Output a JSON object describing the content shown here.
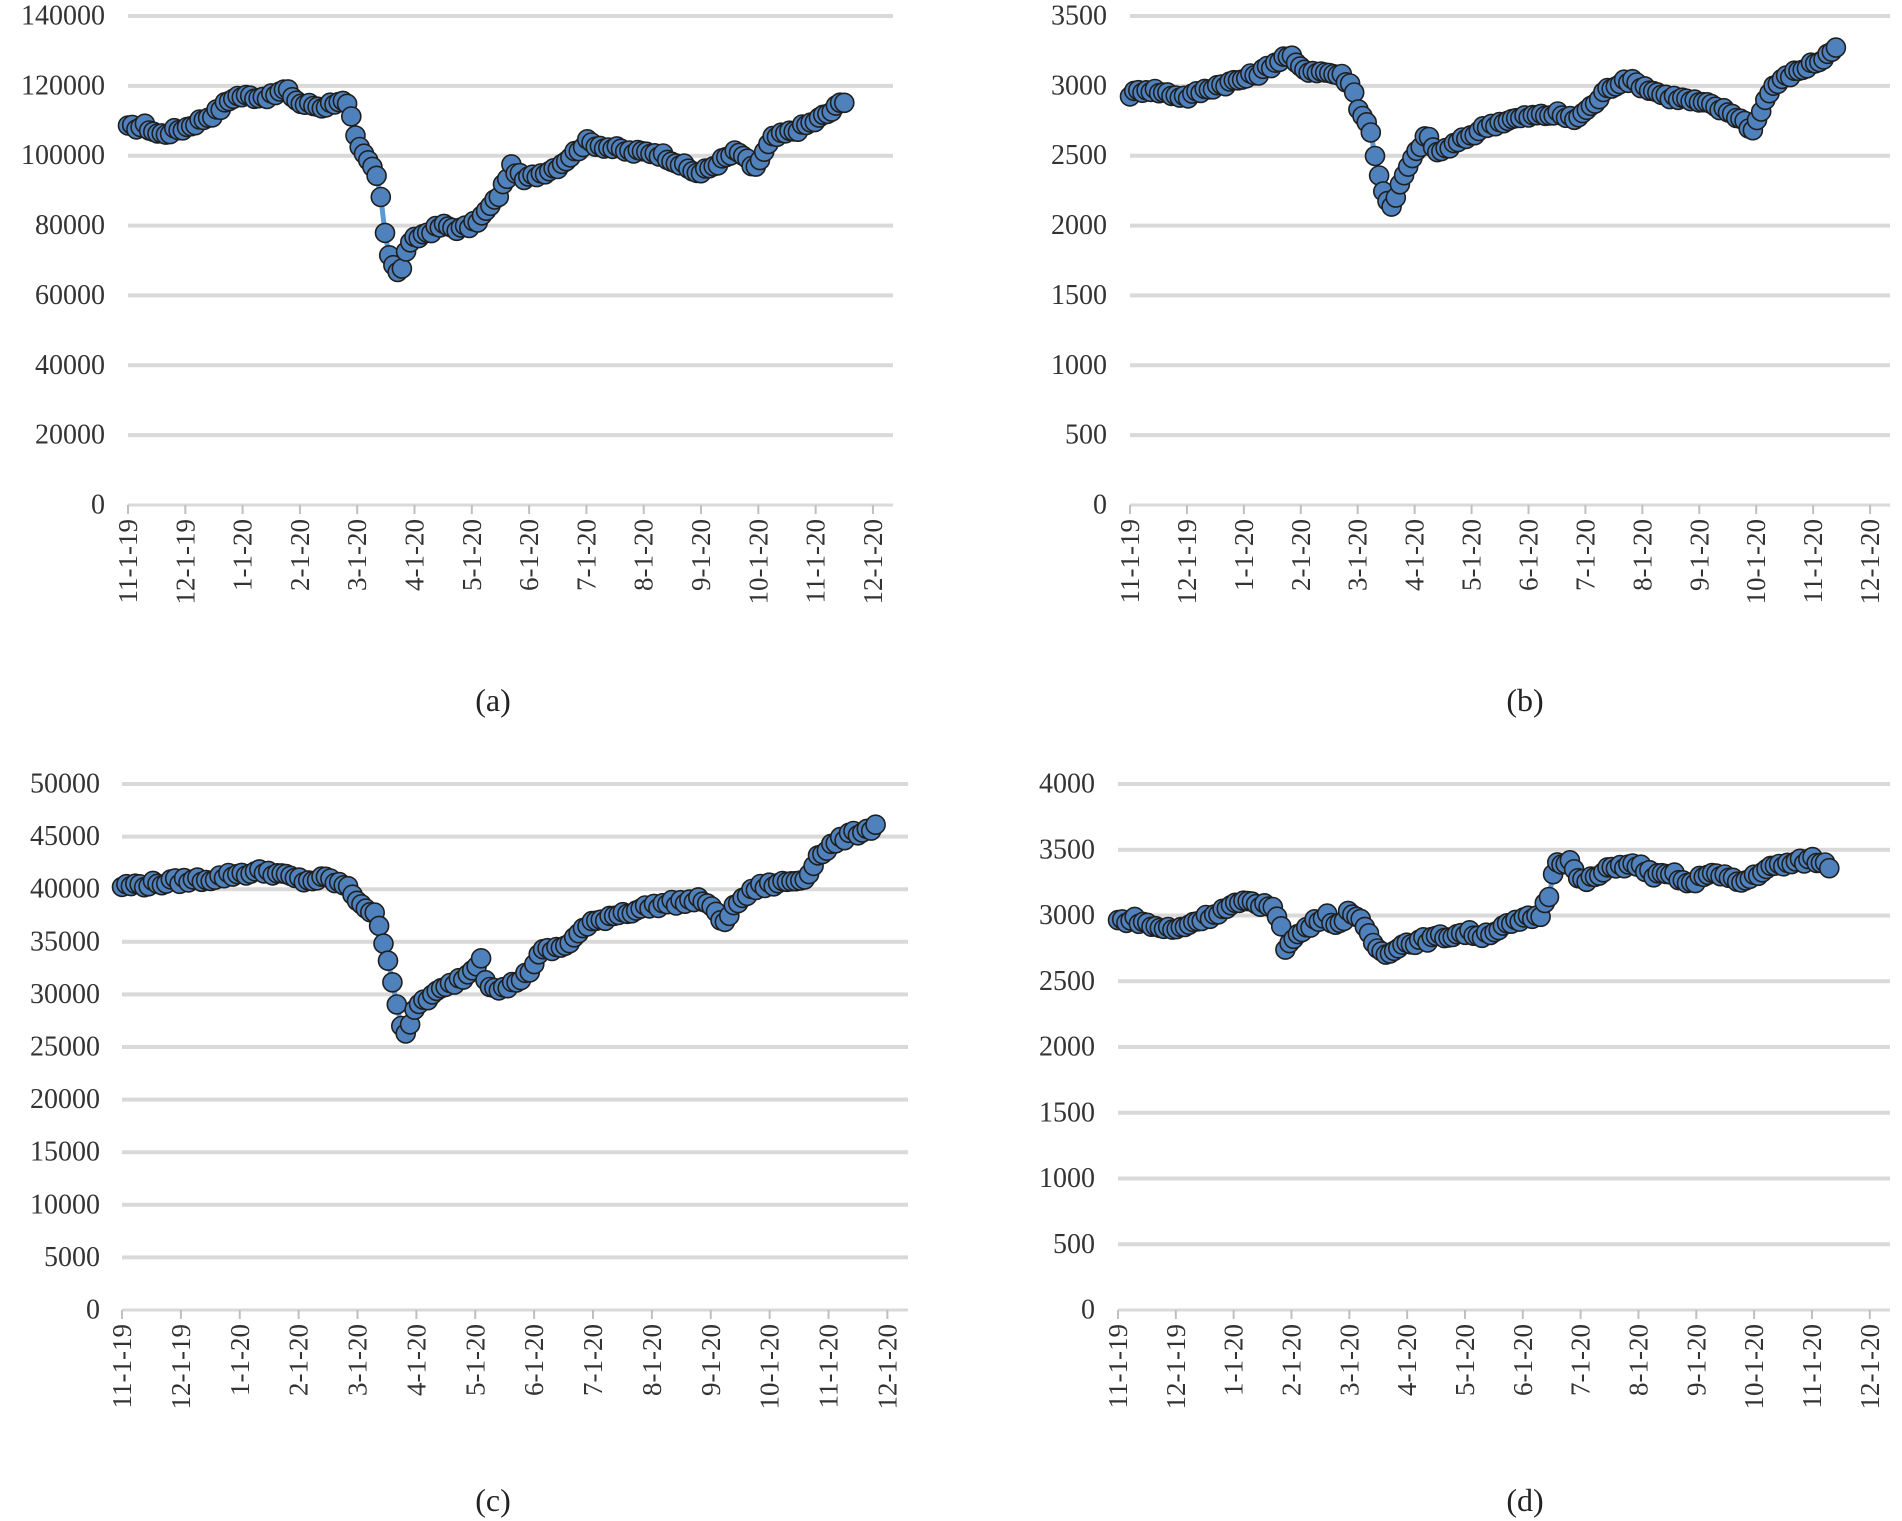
{
  "chart_data": [
    {
      "id": "a",
      "type": "line",
      "caption": "(a)",
      "ylim": [
        0,
        140000
      ],
      "yticks": [
        0,
        20000,
        40000,
        60000,
        80000,
        100000,
        120000,
        140000
      ],
      "xticks": [
        "11-1-19",
        "12-1-19",
        "1-1-20",
        "2-1-20",
        "3-1-20",
        "4-1-20",
        "5-1-20",
        "6-1-20",
        "7-1-20",
        "8-1-20",
        "9-1-20",
        "10-1-20",
        "11-1-20",
        "12-1-20"
      ],
      "x_end_month": 13.35,
      "series": [
        {
          "name": "a",
          "color": "#4f81bd",
          "anchors": [
            [
              0,
              108000
            ],
            [
              0.3,
              108500
            ],
            [
              0.55,
              106000
            ],
            [
              1.0,
              108000
            ],
            [
              1.5,
              112000
            ],
            [
              1.85,
              117000
            ],
            [
              2.5,
              117000
            ],
            [
              2.75,
              119000
            ],
            [
              3.0,
              115000
            ],
            [
              3.4,
              114000
            ],
            [
              3.7,
              116000
            ],
            [
              3.85,
              114000
            ],
            [
              4.0,
              103000
            ],
            [
              4.3,
              96000
            ],
            [
              4.45,
              86000
            ],
            [
              4.5,
              75000
            ],
            [
              4.6,
              70000
            ],
            [
              4.75,
              65000
            ],
            [
              4.85,
              73000
            ],
            [
              5.0,
              76000
            ],
            [
              5.2,
              78000
            ],
            [
              5.5,
              80000
            ],
            [
              5.8,
              79000
            ],
            [
              6.0,
              80000
            ],
            [
              6.2,
              83000
            ],
            [
              6.45,
              88000
            ],
            [
              6.7,
              97000
            ],
            [
              6.9,
              93000
            ],
            [
              7.2,
              95000
            ],
            [
              7.5,
              97000
            ],
            [
              7.8,
              101000
            ],
            [
              8.0,
              104000
            ],
            [
              8.5,
              102000
            ],
            [
              8.8,
              101000
            ],
            [
              9.2,
              101000
            ],
            [
              9.5,
              99000
            ],
            [
              9.8,
              96000
            ],
            [
              10.0,
              95000
            ],
            [
              10.3,
              98000
            ],
            [
              10.6,
              101000
            ],
            [
              10.75,
              100000
            ],
            [
              10.9,
              96000
            ],
            [
              11.0,
              98000
            ],
            [
              11.25,
              105000
            ],
            [
              11.6,
              107000
            ],
            [
              12.0,
              110000
            ],
            [
              12.3,
              113000
            ],
            [
              12.5,
              116000
            ]
          ]
        }
      ]
    },
    {
      "id": "b",
      "type": "line",
      "caption": "(b)",
      "ylim": [
        0,
        3500
      ],
      "yticks": [
        0,
        500,
        1000,
        1500,
        2000,
        2500,
        3000,
        3500
      ],
      "xticks": [
        "11-1-19",
        "12-1-19",
        "1-1-20",
        "2-1-20",
        "3-1-20",
        "4-1-20",
        "5-1-20",
        "6-1-20",
        "7-1-20",
        "8-1-20",
        "9-1-20",
        "10-1-20",
        "11-1-20",
        "12-1-20"
      ],
      "x_end_month": 13.35,
      "series": [
        {
          "name": "b",
          "color": "#4f81bd",
          "anchors": [
            [
              0,
              2940
            ],
            [
              0.3,
              2980
            ],
            [
              0.6,
              2950
            ],
            [
              1.0,
              2920
            ],
            [
              1.5,
              3000
            ],
            [
              2.0,
              3050
            ],
            [
              2.3,
              3100
            ],
            [
              2.6,
              3180
            ],
            [
              2.8,
              3220
            ],
            [
              3.0,
              3120
            ],
            [
              3.4,
              3100
            ],
            [
              3.7,
              3080
            ],
            [
              3.9,
              3000
            ],
            [
              4.05,
              2800
            ],
            [
              4.2,
              2730
            ],
            [
              4.3,
              2500
            ],
            [
              4.45,
              2250
            ],
            [
              4.6,
              2120
            ],
            [
              4.8,
              2350
            ],
            [
              5.0,
              2500
            ],
            [
              5.2,
              2650
            ],
            [
              5.4,
              2520
            ],
            [
              5.7,
              2580
            ],
            [
              6.0,
              2650
            ],
            [
              6.3,
              2720
            ],
            [
              6.6,
              2750
            ],
            [
              7.0,
              2780
            ],
            [
              7.5,
              2800
            ],
            [
              7.8,
              2760
            ],
            [
              8.1,
              2850
            ],
            [
              8.4,
              2980
            ],
            [
              8.7,
              3050
            ],
            [
              9.0,
              3000
            ],
            [
              9.4,
              2930
            ],
            [
              9.8,
              2900
            ],
            [
              10.2,
              2860
            ],
            [
              10.6,
              2800
            ],
            [
              10.8,
              2740
            ],
            [
              10.95,
              2680
            ],
            [
              11.1,
              2850
            ],
            [
              11.3,
              3000
            ],
            [
              11.6,
              3080
            ],
            [
              11.9,
              3140
            ],
            [
              12.2,
              3200
            ],
            [
              12.4,
              3280
            ]
          ]
        }
      ]
    },
    {
      "id": "c",
      "type": "line",
      "caption": "(c)",
      "ylim": [
        0,
        50000
      ],
      "yticks": [
        0,
        5000,
        10000,
        15000,
        20000,
        25000,
        30000,
        35000,
        40000,
        45000,
        50000
      ],
      "xticks": [
        "11-1-19",
        "12-1-19",
        "1-1-20",
        "2-1-20",
        "3-1-20",
        "4-1-20",
        "5-1-20",
        "6-1-20",
        "7-1-20",
        "8-1-20",
        "9-1-20",
        "10-1-20",
        "11-1-20",
        "12-1-20"
      ],
      "x_end_month": 13.35,
      "series": [
        {
          "name": "c",
          "color": "#4f81bd",
          "anchors": [
            [
              0,
              40300
            ],
            [
              0.5,
              40500
            ],
            [
              1.0,
              40800
            ],
            [
              1.5,
              41000
            ],
            [
              2.0,
              41500
            ],
            [
              2.5,
              41700
            ],
            [
              2.8,
              41200
            ],
            [
              3.1,
              40800
            ],
            [
              3.5,
              41000
            ],
            [
              3.8,
              40300
            ],
            [
              4.0,
              39000
            ],
            [
              4.3,
              37500
            ],
            [
              4.5,
              34000
            ],
            [
              4.6,
              31000
            ],
            [
              4.75,
              27000
            ],
            [
              4.85,
              26000
            ],
            [
              5.0,
              29000
            ],
            [
              5.3,
              30000
            ],
            [
              5.6,
              31000
            ],
            [
              5.9,
              32000
            ],
            [
              6.1,
              33500
            ],
            [
              6.2,
              31000
            ],
            [
              6.5,
              30500
            ],
            [
              6.9,
              32000
            ],
            [
              7.1,
              34000
            ],
            [
              7.5,
              34500
            ],
            [
              7.9,
              36500
            ],
            [
              8.3,
              37500
            ],
            [
              8.7,
              38000
            ],
            [
              9.1,
              38500
            ],
            [
              9.5,
              38800
            ],
            [
              9.9,
              39000
            ],
            [
              10.2,
              36800
            ],
            [
              10.5,
              39000
            ],
            [
              10.8,
              40200
            ],
            [
              11.2,
              40600
            ],
            [
              11.6,
              41000
            ],
            [
              11.8,
              43000
            ],
            [
              12.0,
              44000
            ],
            [
              12.3,
              45000
            ],
            [
              12.6,
              45600
            ],
            [
              12.8,
              46000
            ]
          ]
        }
      ]
    },
    {
      "id": "d",
      "type": "line",
      "caption": "(d)",
      "ylim": [
        0,
        4000
      ],
      "yticks": [
        0,
        500,
        1000,
        1500,
        2000,
        2500,
        3000,
        3500,
        4000
      ],
      "xticks": [
        "11-1-19",
        "12-1-19",
        "1-1-20",
        "2-1-20",
        "3-1-20",
        "4-1-20",
        "5-1-20",
        "6-1-20",
        "7-1-20",
        "8-1-20",
        "9-1-20",
        "10-1-20",
        "11-1-20",
        "12-1-20"
      ],
      "x_end_month": 13.35,
      "series": [
        {
          "name": "d",
          "color": "#4f81bd",
          "anchors": [
            [
              0,
              2960
            ],
            [
              0.3,
              2970
            ],
            [
              0.6,
              2920
            ],
            [
              1.0,
              2890
            ],
            [
              1.3,
              2950
            ],
            [
              1.6,
              3000
            ],
            [
              2.0,
              3080
            ],
            [
              2.3,
              3100
            ],
            [
              2.6,
              3080
            ],
            [
              2.8,
              2980
            ],
            [
              2.9,
              2750
            ],
            [
              3.1,
              2850
            ],
            [
              3.4,
              2950
            ],
            [
              3.6,
              3020
            ],
            [
              3.8,
              2900
            ],
            [
              4.0,
              3050
            ],
            [
              4.2,
              2950
            ],
            [
              4.4,
              2800
            ],
            [
              4.6,
              2700
            ],
            [
              4.8,
              2760
            ],
            [
              5.0,
              2790
            ],
            [
              5.5,
              2830
            ],
            [
              6.0,
              2870
            ],
            [
              6.3,
              2850
            ],
            [
              6.6,
              2900
            ],
            [
              6.9,
              2950
            ],
            [
              7.1,
              2980
            ],
            [
              7.3,
              3000
            ],
            [
              7.45,
              3150
            ],
            [
              7.55,
              3400
            ],
            [
              7.8,
              3420
            ],
            [
              8.0,
              3250
            ],
            [
              8.3,
              3300
            ],
            [
              8.6,
              3380
            ],
            [
              9.0,
              3380
            ],
            [
              9.3,
              3300
            ],
            [
              9.6,
              3310
            ],
            [
              9.9,
              3230
            ],
            [
              10.2,
              3330
            ],
            [
              10.5,
              3290
            ],
            [
              10.8,
              3250
            ],
            [
              11.1,
              3330
            ],
            [
              11.4,
              3380
            ],
            [
              11.7,
              3400
            ],
            [
              12.0,
              3430
            ],
            [
              12.3,
              3380
            ]
          ]
        }
      ]
    }
  ]
}
